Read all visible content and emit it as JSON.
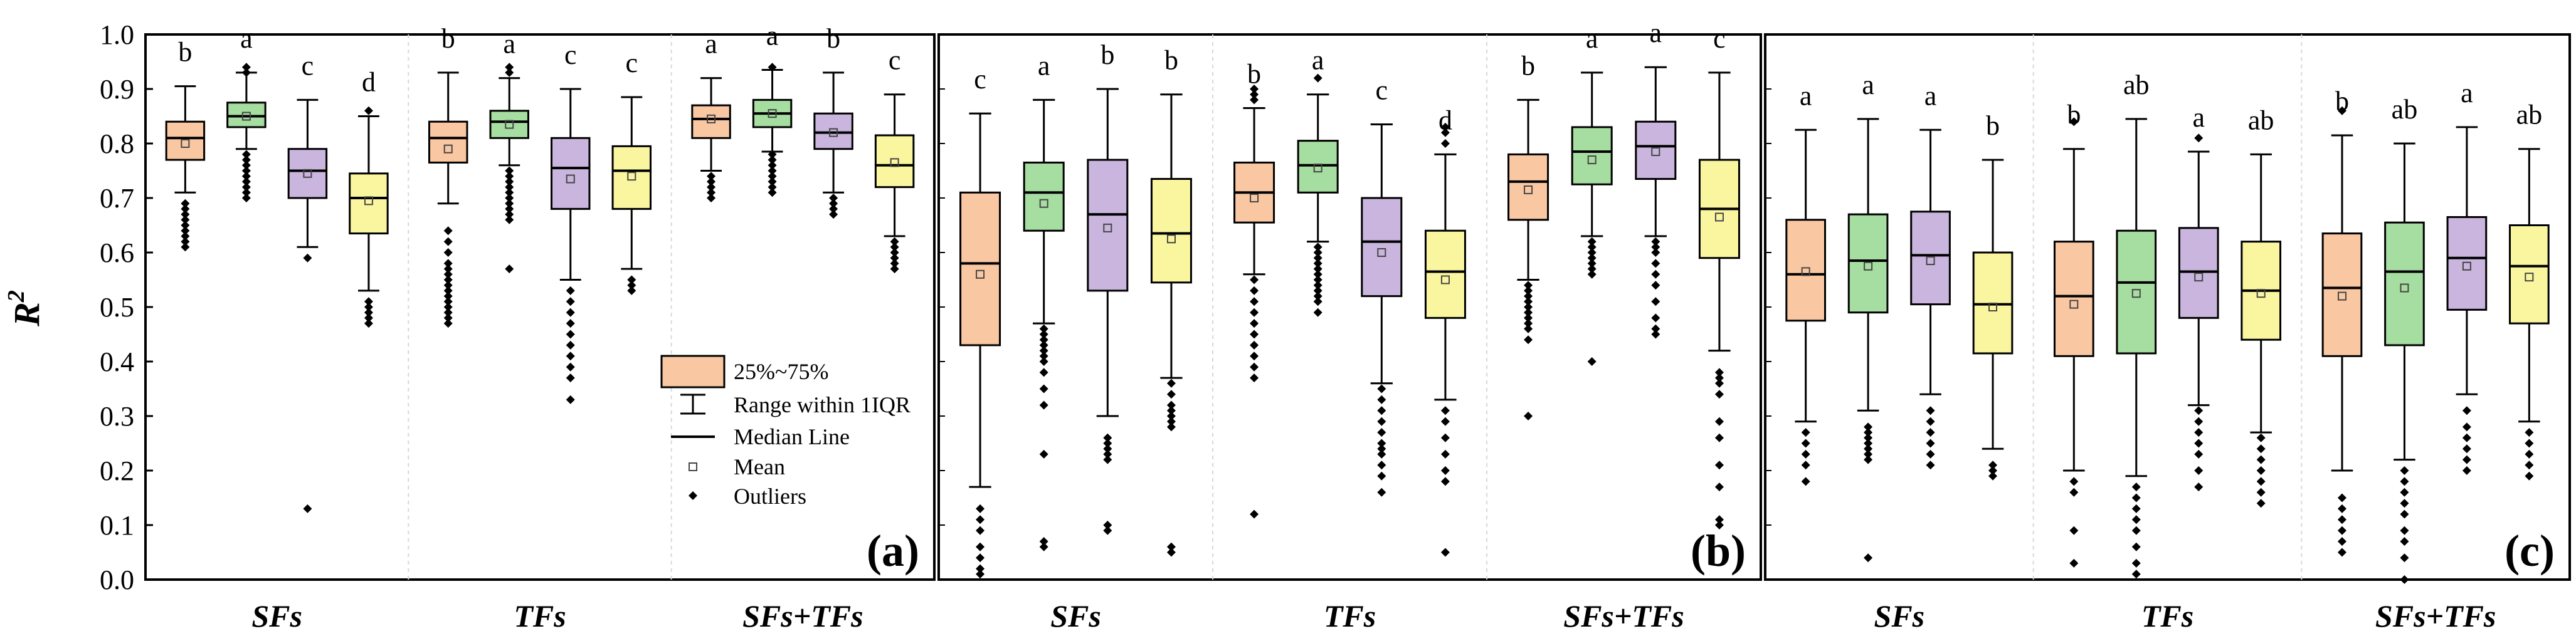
{
  "chart_data": {
    "type": "boxplot",
    "ylabel": "R",
    "ylabel_superscript": "2",
    "ylim": [
      0,
      1.0
    ],
    "yticks": [
      "0.0",
      "0.1",
      "0.2",
      "0.3",
      "0.4",
      "0.5",
      "0.6",
      "0.7",
      "0.8",
      "0.9",
      "1.0"
    ],
    "colors": [
      "#F9C8A2",
      "#A6DDA0",
      "#C9B5DD",
      "#FAF6A0"
    ],
    "legend": {
      "box": "25%~75%",
      "whisker": "Range within 1IQR",
      "median": "Median Line",
      "mean": "Mean",
      "outliers": "Outliers"
    },
    "panels": [
      {
        "tag": "(a)",
        "groups": [
          {
            "name": "SFs",
            "boxes": [
              {
                "q1": 0.77,
                "med": 0.81,
                "q3": 0.84,
                "lo": 0.71,
                "hi": 0.905,
                "mean": 0.8,
                "sig": "b",
                "outliers": [
                  0.69,
                  0.68,
                  0.67,
                  0.66,
                  0.65,
                  0.64,
                  0.63,
                  0.62,
                  0.61
                ]
              },
              {
                "q1": 0.83,
                "med": 0.85,
                "q3": 0.875,
                "lo": 0.79,
                "hi": 0.93,
                "mean": 0.85,
                "sig": "a",
                "outliers": [
                  0.94,
                  0.93,
                  0.78,
                  0.77,
                  0.76,
                  0.75,
                  0.74,
                  0.73,
                  0.72,
                  0.71,
                  0.7
                ]
              },
              {
                "q1": 0.7,
                "med": 0.75,
                "q3": 0.79,
                "lo": 0.61,
                "hi": 0.88,
                "mean": 0.745,
                "sig": "c",
                "outliers": [
                  0.59,
                  0.13
                ]
              },
              {
                "q1": 0.635,
                "med": 0.7,
                "q3": 0.745,
                "lo": 0.53,
                "hi": 0.85,
                "mean": 0.695,
                "sig": "d",
                "outliers": [
                  0.86,
                  0.51,
                  0.5,
                  0.49,
                  0.48,
                  0.47
                ]
              }
            ]
          },
          {
            "name": "TFs",
            "boxes": [
              {
                "q1": 0.765,
                "med": 0.81,
                "q3": 0.84,
                "lo": 0.69,
                "hi": 0.93,
                "mean": 0.79,
                "sig": "b",
                "outliers": [
                  0.64,
                  0.62,
                  0.6,
                  0.58,
                  0.57,
                  0.56,
                  0.55,
                  0.54,
                  0.53,
                  0.52,
                  0.51,
                  0.5,
                  0.49,
                  0.48,
                  0.47
                ]
              },
              {
                "q1": 0.81,
                "med": 0.84,
                "q3": 0.86,
                "lo": 0.76,
                "hi": 0.92,
                "mean": 0.835,
                "sig": "a",
                "outliers": [
                  0.94,
                  0.93,
                  0.75,
                  0.74,
                  0.73,
                  0.72,
                  0.71,
                  0.7,
                  0.69,
                  0.68,
                  0.67,
                  0.66,
                  0.57
                ]
              },
              {
                "q1": 0.68,
                "med": 0.755,
                "q3": 0.81,
                "lo": 0.55,
                "hi": 0.9,
                "mean": 0.735,
                "sig": "c",
                "outliers": [
                  0.53,
                  0.51,
                  0.49,
                  0.47,
                  0.45,
                  0.43,
                  0.41,
                  0.39,
                  0.37,
                  0.33
                ]
              },
              {
                "q1": 0.68,
                "med": 0.75,
                "q3": 0.795,
                "lo": 0.57,
                "hi": 0.885,
                "mean": 0.74,
                "sig": "c",
                "outliers": [
                  0.55,
                  0.54,
                  0.53
                ]
              }
            ]
          },
          {
            "name": "SFs+TFs",
            "boxes": [
              {
                "q1": 0.81,
                "med": 0.845,
                "q3": 0.87,
                "lo": 0.75,
                "hi": 0.92,
                "mean": 0.845,
                "sig": "a",
                "outliers": [
                  0.74,
                  0.73,
                  0.72,
                  0.71,
                  0.7
                ]
              },
              {
                "q1": 0.83,
                "med": 0.855,
                "q3": 0.88,
                "lo": 0.785,
                "hi": 0.935,
                "mean": 0.855,
                "sig": "a",
                "outliers": [
                  0.94,
                  0.78,
                  0.77,
                  0.76,
                  0.75,
                  0.74,
                  0.73,
                  0.72,
                  0.71
                ]
              },
              {
                "q1": 0.79,
                "med": 0.82,
                "q3": 0.855,
                "lo": 0.71,
                "hi": 0.93,
                "mean": 0.82,
                "sig": "b",
                "outliers": [
                  0.7,
                  0.69,
                  0.68,
                  0.67
                ]
              },
              {
                "q1": 0.72,
                "med": 0.76,
                "q3": 0.815,
                "lo": 0.63,
                "hi": 0.89,
                "mean": 0.765,
                "sig": "c",
                "outliers": [
                  0.62,
                  0.61,
                  0.6,
                  0.59,
                  0.58,
                  0.57
                ]
              }
            ]
          }
        ]
      },
      {
        "tag": "(b)",
        "groups": [
          {
            "name": "SFs",
            "boxes": [
              {
                "q1": 0.43,
                "med": 0.58,
                "q3": 0.71,
                "lo": 0.17,
                "hi": 0.855,
                "mean": 0.56,
                "sig": "c",
                "outliers": [
                  0.13,
                  0.11,
                  0.09,
                  0.06,
                  0.04,
                  0.02,
                  0.01
                ]
              },
              {
                "q1": 0.64,
                "med": 0.71,
                "q3": 0.765,
                "lo": 0.47,
                "hi": 0.88,
                "mean": 0.69,
                "sig": "a",
                "outliers": [
                  0.46,
                  0.45,
                  0.44,
                  0.43,
                  0.42,
                  0.41,
                  0.4,
                  0.38,
                  0.35,
                  0.32,
                  0.23,
                  0.07,
                  0.06
                ]
              },
              {
                "q1": 0.53,
                "med": 0.67,
                "q3": 0.77,
                "lo": 0.3,
                "hi": 0.9,
                "mean": 0.645,
                "sig": "b",
                "outliers": [
                  0.26,
                  0.25,
                  0.24,
                  0.23,
                  0.22,
                  0.1,
                  0.09
                ]
              },
              {
                "q1": 0.545,
                "med": 0.635,
                "q3": 0.735,
                "lo": 0.37,
                "hi": 0.89,
                "mean": 0.625,
                "sig": "b",
                "outliers": [
                  0.36,
                  0.34,
                  0.32,
                  0.31,
                  0.3,
                  0.29,
                  0.28,
                  0.06,
                  0.05
                ]
              }
            ]
          },
          {
            "name": "TFs",
            "boxes": [
              {
                "q1": 0.655,
                "med": 0.71,
                "q3": 0.765,
                "lo": 0.56,
                "hi": 0.865,
                "mean": 0.7,
                "sig": "b",
                "outliers": [
                  0.9,
                  0.89,
                  0.88,
                  0.55,
                  0.53,
                  0.51,
                  0.49,
                  0.47,
                  0.45,
                  0.43,
                  0.41,
                  0.39,
                  0.37,
                  0.12
                ]
              },
              {
                "q1": 0.71,
                "med": 0.76,
                "q3": 0.805,
                "lo": 0.62,
                "hi": 0.89,
                "mean": 0.755,
                "sig": "a",
                "outliers": [
                  0.92,
                  0.61,
                  0.6,
                  0.59,
                  0.58,
                  0.57,
                  0.56,
                  0.55,
                  0.54,
                  0.53,
                  0.52,
                  0.51,
                  0.49
                ]
              },
              {
                "q1": 0.52,
                "med": 0.62,
                "q3": 0.7,
                "lo": 0.36,
                "hi": 0.835,
                "mean": 0.6,
                "sig": "c",
                "outliers": [
                  0.35,
                  0.33,
                  0.31,
                  0.29,
                  0.27,
                  0.25,
                  0.24,
                  0.23,
                  0.21,
                  0.19,
                  0.16
                ]
              },
              {
                "q1": 0.48,
                "med": 0.565,
                "q3": 0.64,
                "lo": 0.33,
                "hi": 0.78,
                "mean": 0.55,
                "sig": "d",
                "outliers": [
                  0.83,
                  0.82,
                  0.8,
                  0.31,
                  0.29,
                  0.26,
                  0.23,
                  0.2,
                  0.18,
                  0.05
                ]
              }
            ]
          },
          {
            "name": "SFs+TFs",
            "boxes": [
              {
                "q1": 0.66,
                "med": 0.73,
                "q3": 0.78,
                "lo": 0.55,
                "hi": 0.88,
                "mean": 0.715,
                "sig": "b",
                "outliers": [
                  0.54,
                  0.53,
                  0.52,
                  0.51,
                  0.5,
                  0.49,
                  0.48,
                  0.47,
                  0.46,
                  0.44,
                  0.3
                ]
              },
              {
                "q1": 0.725,
                "med": 0.785,
                "q3": 0.83,
                "lo": 0.63,
                "hi": 0.93,
                "mean": 0.77,
                "sig": "a",
                "outliers": [
                  0.62,
                  0.61,
                  0.6,
                  0.59,
                  0.58,
                  0.57,
                  0.56,
                  0.4
                ]
              },
              {
                "q1": 0.735,
                "med": 0.795,
                "q3": 0.84,
                "lo": 0.63,
                "hi": 0.94,
                "mean": 0.785,
                "sig": "a",
                "outliers": [
                  0.62,
                  0.61,
                  0.6,
                  0.58,
                  0.56,
                  0.54,
                  0.51,
                  0.48,
                  0.46,
                  0.45
                ]
              },
              {
                "q1": 0.59,
                "med": 0.68,
                "q3": 0.77,
                "lo": 0.42,
                "hi": 0.93,
                "mean": 0.665,
                "sig": "c",
                "outliers": [
                  0.38,
                  0.37,
                  0.36,
                  0.34,
                  0.29,
                  0.26,
                  0.21,
                  0.17,
                  0.11,
                  0.1
                ]
              }
            ]
          }
        ]
      },
      {
        "tag": "(c)",
        "groups": [
          {
            "name": "SFs",
            "boxes": [
              {
                "q1": 0.475,
                "med": 0.56,
                "q3": 0.66,
                "lo": 0.29,
                "hi": 0.825,
                "mean": 0.565,
                "sig": "a",
                "outliers": [
                  0.27,
                  0.25,
                  0.23,
                  0.21,
                  0.18
                ]
              },
              {
                "q1": 0.49,
                "med": 0.585,
                "q3": 0.67,
                "lo": 0.31,
                "hi": 0.845,
                "mean": 0.575,
                "sig": "a",
                "outliers": [
                  0.28,
                  0.27,
                  0.26,
                  0.25,
                  0.24,
                  0.23,
                  0.22,
                  0.04
                ]
              },
              {
                "q1": 0.505,
                "med": 0.595,
                "q3": 0.675,
                "lo": 0.34,
                "hi": 0.825,
                "mean": 0.585,
                "sig": "a",
                "outliers": [
                  0.31,
                  0.29,
                  0.27,
                  0.25,
                  0.23,
                  0.21
                ]
              },
              {
                "q1": 0.415,
                "med": 0.505,
                "q3": 0.6,
                "lo": 0.24,
                "hi": 0.77,
                "mean": 0.5,
                "sig": "b",
                "outliers": [
                  0.21,
                  0.2,
                  0.19
                ]
              }
            ]
          },
          {
            "name": "TFs",
            "boxes": [
              {
                "q1": 0.41,
                "med": 0.52,
                "q3": 0.62,
                "lo": 0.2,
                "hi": 0.79,
                "mean": 0.505,
                "sig": "b",
                "outliers": [
                  0.84,
                  0.18,
                  0.16,
                  0.09,
                  0.03
                ]
              },
              {
                "q1": 0.415,
                "med": 0.545,
                "q3": 0.64,
                "lo": 0.19,
                "hi": 0.845,
                "mean": 0.525,
                "sig": "ab",
                "outliers": [
                  0.17,
                  0.15,
                  0.13,
                  0.11,
                  0.09,
                  0.06,
                  0.03,
                  0.01
                ]
              },
              {
                "q1": 0.48,
                "med": 0.565,
                "q3": 0.645,
                "lo": 0.32,
                "hi": 0.785,
                "mean": 0.555,
                "sig": "a",
                "outliers": [
                  0.81,
                  0.31,
                  0.29,
                  0.27,
                  0.25,
                  0.23,
                  0.2,
                  0.17
                ]
              },
              {
                "q1": 0.44,
                "med": 0.53,
                "q3": 0.62,
                "lo": 0.27,
                "hi": 0.78,
                "mean": 0.525,
                "sig": "ab",
                "outliers": [
                  0.26,
                  0.24,
                  0.22,
                  0.2,
                  0.18,
                  0.16,
                  0.14
                ]
              }
            ]
          },
          {
            "name": "SFs+TFs",
            "boxes": [
              {
                "q1": 0.41,
                "med": 0.535,
                "q3": 0.635,
                "lo": 0.2,
                "hi": 0.815,
                "mean": 0.52,
                "sig": "b",
                "outliers": [
                  0.86,
                  0.15,
                  0.13,
                  0.11,
                  0.09,
                  0.07,
                  0.05
                ]
              },
              {
                "q1": 0.43,
                "med": 0.565,
                "q3": 0.655,
                "lo": 0.22,
                "hi": 0.8,
                "mean": 0.535,
                "sig": "ab",
                "outliers": [
                  0.2,
                  0.18,
                  0.16,
                  0.14,
                  0.12,
                  0.09,
                  0.07,
                  0.04,
                  0.0
                ]
              },
              {
                "q1": 0.495,
                "med": 0.59,
                "q3": 0.665,
                "lo": 0.34,
                "hi": 0.83,
                "mean": 0.575,
                "sig": "a",
                "outliers": [
                  0.31,
                  0.28,
                  0.26,
                  0.24,
                  0.22,
                  0.2
                ]
              },
              {
                "q1": 0.47,
                "med": 0.575,
                "q3": 0.65,
                "lo": 0.29,
                "hi": 0.79,
                "mean": 0.555,
                "sig": "ab",
                "outliers": [
                  0.27,
                  0.25,
                  0.23,
                  0.21,
                  0.19
                ]
              }
            ]
          }
        ]
      }
    ]
  }
}
